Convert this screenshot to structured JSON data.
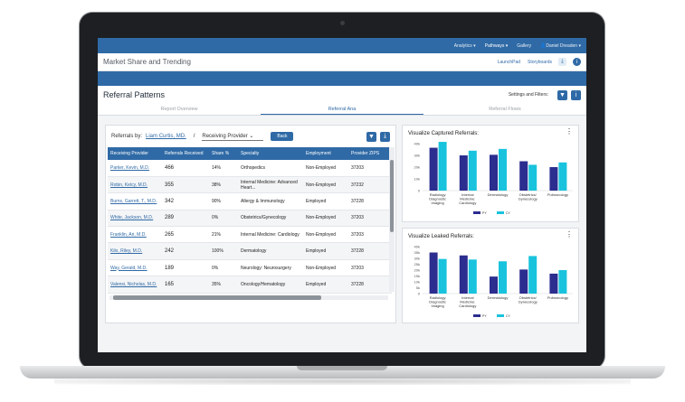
{
  "nav": {
    "analytics": "Analytics ▾",
    "pathways": "Pathways ▾",
    "gallery": "Gallery",
    "user": "Daniel Dreaden ▾"
  },
  "titlebar": {
    "title": "Market Share and Trending",
    "launchpad": "LaunchPad",
    "storyboards": "Storyboards"
  },
  "header": {
    "title": "Referral Patterns",
    "settings_label": "Settings and Filters:"
  },
  "tabs": [
    {
      "label": "Report Overview",
      "active": false
    },
    {
      "label": "Referral Ana",
      "active": true
    },
    {
      "label": "Referral Flows",
      "active": false
    }
  ],
  "toolbar": {
    "referrals_by": "Referrals by:",
    "selected_provider": "Liam Curtis, MD.",
    "slash": "/",
    "dimension": "Receiving Provider",
    "back": "Back"
  },
  "table": {
    "columns": [
      "Receiving Provider",
      "Referrals Received",
      "Share %",
      "Specialty",
      "Employment",
      "Provider ZIPS"
    ],
    "rows": [
      [
        "Parker, Kevin, M.D.",
        "466",
        "14%",
        "Orthopedics",
        "Non-Employed",
        "37203"
      ],
      [
        "Robin, Kelcy, M.D.",
        "355",
        "38%",
        "Internal Medicine: Advanced Heart...",
        "Non-Employed",
        "37232"
      ],
      [
        "Burns, Garrett, T., M.D.",
        "342",
        "90%",
        "Allergy & Immunology",
        "Employed",
        "37228"
      ],
      [
        "White, Jackson, M.D.",
        "289",
        "0%",
        "Obstetrics/Gynecology",
        "Non-Employed",
        "37203"
      ],
      [
        "Franklin, Ari, M.D.",
        "265",
        "21%",
        "Internal Medicine: Cardiology",
        "Non-Employed",
        "37203"
      ],
      [
        "Kilo, Riley, M.D.",
        "242",
        "100%",
        "Dermatology",
        "Employed",
        "37228"
      ],
      [
        "Way, Gerald, M.D.",
        "189",
        "0%",
        "Neurology: Neurosurgery",
        "Non-Employed",
        "37203"
      ],
      [
        "Valensi, Nicholas, M.D.",
        "165",
        "35%",
        "Oncology/Hematology",
        "Employed",
        "37228"
      ]
    ]
  },
  "chart_data": [
    {
      "type": "bar",
      "title": "Visualize Captured Referrals:",
      "categories": [
        "Radiology Diagnostic Imaging",
        "Internal Medicine: Cardiology",
        "Dermatology",
        "Obstetrics/ Gynecology",
        "Pulmonology"
      ],
      "yticks": [
        "40k",
        "30k",
        "20k",
        "10k",
        "0"
      ],
      "ylim": [
        0,
        40
      ],
      "series": [
        {
          "name": "PY",
          "color": "#2b2d8f",
          "values": [
            36.5,
            30,
            30.5,
            25,
            20
          ]
        },
        {
          "name": "CY",
          "color": "#19c3dd",
          "values": [
            41.5,
            34,
            35.5,
            22,
            24
          ]
        }
      ]
    },
    {
      "type": "bar",
      "title": "Visualize Leaked Referrals:",
      "categories": [
        "Radiology Diagnostic Imaging",
        "Internal Medicine: Cardiology",
        "Dermatology",
        "Obstetrics/ Gynecology",
        "Pulmonology"
      ],
      "yticks": [
        "40k",
        "35k",
        "30k",
        "25k",
        "20k",
        "15k",
        "10k",
        "5k",
        "0"
      ],
      "ylim": [
        0,
        40
      ],
      "series": [
        {
          "name": "PY",
          "color": "#2b2d8f",
          "values": [
            35,
            32.5,
            14.5,
            20.5,
            17
          ]
        },
        {
          "name": "CY",
          "color": "#19c3dd",
          "values": [
            29.5,
            29,
            27.5,
            32,
            20
          ]
        }
      ]
    }
  ]
}
